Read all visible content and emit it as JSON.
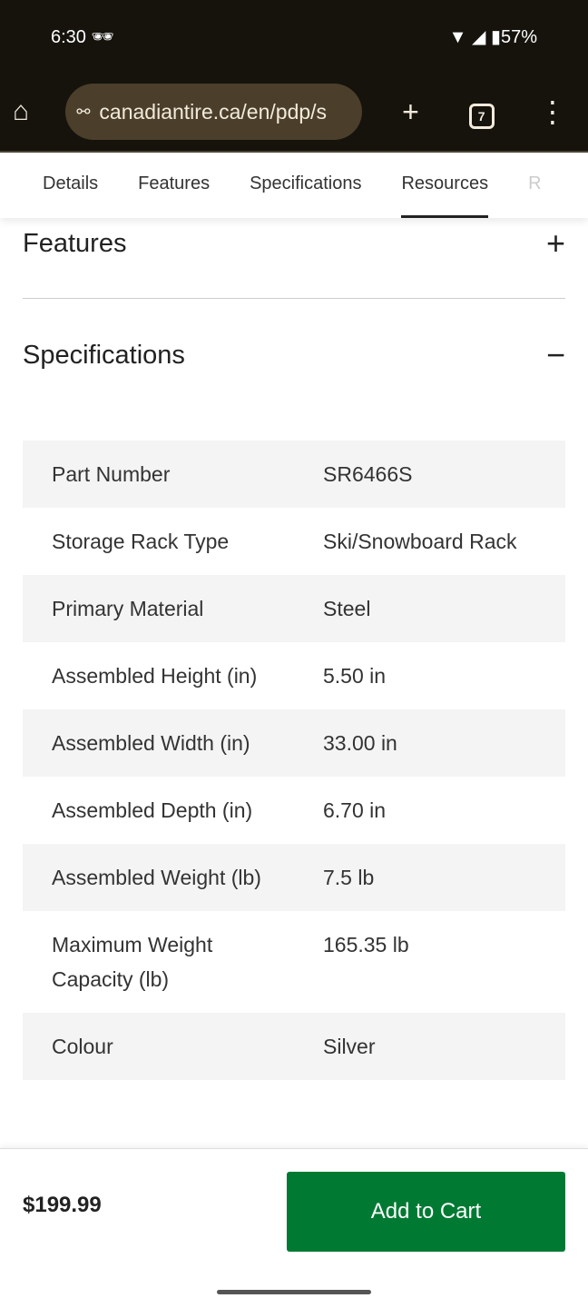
{
  "status": {
    "time": "6:30",
    "battery": "57%",
    "icons": [
      "incognito-icon",
      "wifi-icon",
      "signal-icon",
      "battery-icon"
    ]
  },
  "browser": {
    "url": "canadiantire.ca/en/pdp/s",
    "tab_count": "7"
  },
  "tabs": [
    {
      "label": "Details"
    },
    {
      "label": "Features"
    },
    {
      "label": "Specifications"
    },
    {
      "label": "Resources",
      "active": true
    },
    {
      "label": "R"
    }
  ],
  "sections": {
    "features": {
      "title": "Features",
      "toggle": "+"
    },
    "specifications": {
      "title": "Specifications",
      "toggle": "−"
    }
  },
  "specs": [
    {
      "key": "Part Number",
      "value": "SR6466S"
    },
    {
      "key": "Storage Rack Type",
      "value": "Ski/Snowboard Rack"
    },
    {
      "key": "Primary Material",
      "value": "Steel"
    },
    {
      "key": "Assembled Height (in)",
      "value": "5.50 in"
    },
    {
      "key": "Assembled Width (in)",
      "value": "33.00 in"
    },
    {
      "key": "Assembled Depth (in)",
      "value": "6.70 in"
    },
    {
      "key": "Assembled Weight (lb)",
      "value": "7.5 lb"
    },
    {
      "key": "Maximum Weight Capacity (lb)",
      "value": "165.35 lb"
    },
    {
      "key": "Colour",
      "value": "Silver"
    }
  ],
  "footer": {
    "price": "$199.99",
    "add_to_cart": "Add to Cart"
  },
  "colors": {
    "accent": "#007a33",
    "chrome": "#16130d"
  }
}
